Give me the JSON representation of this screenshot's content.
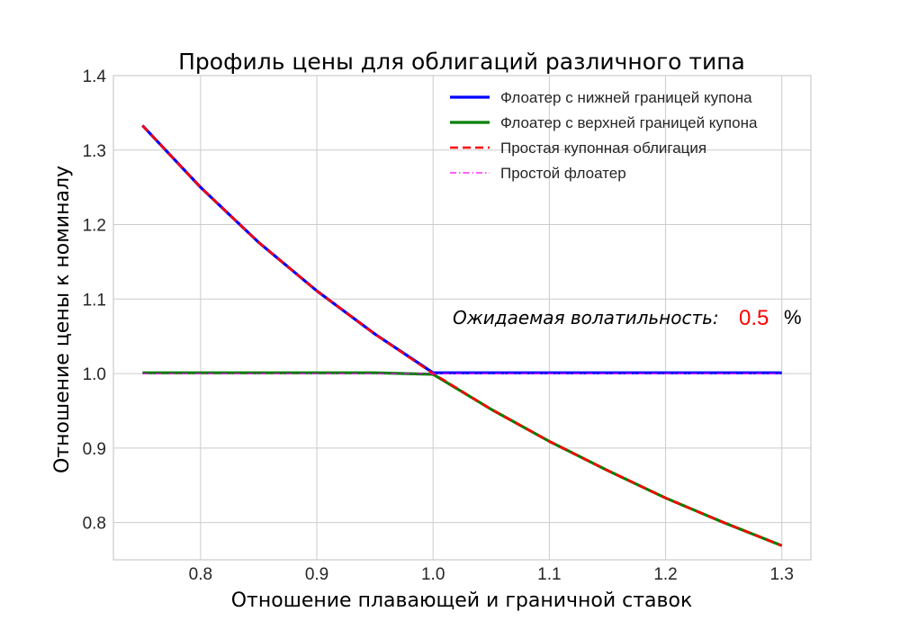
{
  "chart_data": {
    "type": "line",
    "title": "Профиль цены для облигаций различного типа",
    "xlabel": "Отношение плавающей и граничной ставок",
    "ylabel": "Отношение цены к номиналу",
    "xlim": [
      0.725,
      1.325
    ],
    "ylim": [
      0.75,
      1.4
    ],
    "xticks": [
      0.8,
      0.9,
      1.0,
      1.1,
      1.2,
      1.3
    ],
    "xtick_labels": [
      "0.8",
      "0.9",
      "1.0",
      "1.1",
      "1.2",
      "1.3"
    ],
    "yticks": [
      0.8,
      0.9,
      1.0,
      1.1,
      1.2,
      1.3,
      1.4
    ],
    "ytick_labels": [
      "0.8",
      "0.9",
      "1.0",
      "1.1",
      "1.2",
      "1.3",
      "1.4"
    ],
    "grid": true,
    "legend_position": "top-right",
    "x": [
      0.75,
      0.8,
      0.85,
      0.9,
      0.95,
      1.0,
      1.05,
      1.1,
      1.15,
      1.2,
      1.25,
      1.3
    ],
    "series": [
      {
        "name": "Флоатер с нижней границей купона",
        "color": "#0000ff",
        "dash": "solid",
        "values": [
          1.333,
          1.25,
          1.176,
          1.111,
          1.053,
          1.001,
          1.001,
          1.001,
          1.001,
          1.001,
          1.001,
          1.001
        ]
      },
      {
        "name": "Флоатер с верхней границей купона",
        "color": "#008000",
        "dash": "solid",
        "values": [
          1.001,
          1.001,
          1.001,
          1.001,
          1.001,
          0.999,
          0.952,
          0.909,
          0.87,
          0.833,
          0.8,
          0.769
        ]
      },
      {
        "name": "Простая купонная облигация",
        "color": "#ff0000",
        "dash": "dashed",
        "values": [
          1.333,
          1.25,
          1.176,
          1.111,
          1.053,
          1.0,
          0.952,
          0.909,
          0.87,
          0.833,
          0.8,
          0.769
        ]
      },
      {
        "name": "Простой флоатер",
        "color": "#ff00ff",
        "dash": "dashdot",
        "values": [
          1.0,
          1.0,
          1.0,
          1.0,
          1.0,
          1.0,
          1.0,
          1.0,
          1.0,
          1.0,
          1.0,
          1.0
        ]
      }
    ],
    "annotation": {
      "label": "Ожидаемая волатильность:",
      "value": "0.5",
      "value_color": "#ff0000",
      "unit": "%"
    }
  }
}
